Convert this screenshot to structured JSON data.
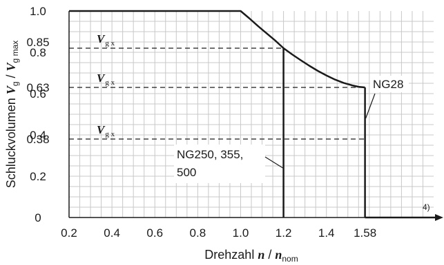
{
  "chart_data": {
    "type": "line",
    "xlabel": {
      "text": "Drehzahl ",
      "var": "n",
      "sep": " / ",
      "var2": "n",
      "sub": "nom"
    },
    "ylabel": {
      "text": "Schluckvolumen ",
      "var": "V",
      "sub": "g",
      "sep": " / ",
      "var2": "V",
      "sub2": "g max"
    },
    "xlim": [
      0.2,
      1.9
    ],
    "ylim": [
      0,
      1.0
    ],
    "x_ticks": [
      {
        "value": 0.2,
        "label": "0.2"
      },
      {
        "value": 0.4,
        "label": "0.4"
      },
      {
        "value": 0.6,
        "label": "0.6"
      },
      {
        "value": 0.8,
        "label": "0.8"
      },
      {
        "value": 1.0,
        "label": "1.0"
      },
      {
        "value": 1.2,
        "label": "1.2"
      },
      {
        "value": 1.4,
        "label": "1.4"
      },
      {
        "value": 1.58,
        "label": "1.58"
      }
    ],
    "y_ticks": [
      {
        "value": 0,
        "label": "0"
      },
      {
        "value": 0.2,
        "label": "0.2"
      },
      {
        "value": 0.38,
        "label": "0.38"
      },
      {
        "value": 0.4,
        "label": "0.4"
      },
      {
        "value": 0.6,
        "label": "0.6"
      },
      {
        "value": 0.63,
        "label": "0.63"
      },
      {
        "value": 0.8,
        "label": "0.8"
      },
      {
        "value": 0.85,
        "label": "0.85"
      },
      {
        "value": 1.0,
        "label": "1.0"
      }
    ],
    "grid": true,
    "envelope": [
      [
        0.2,
        1.0
      ],
      [
        1.0,
        1.0
      ],
      [
        1.04,
        0.965
      ],
      [
        1.08,
        0.928
      ],
      [
        1.12,
        0.893
      ],
      [
        1.16,
        0.858
      ],
      [
        1.2,
        0.82
      ],
      [
        1.24,
        0.79
      ],
      [
        1.28,
        0.762
      ],
      [
        1.32,
        0.735
      ],
      [
        1.36,
        0.71
      ],
      [
        1.4,
        0.688
      ],
      [
        1.44,
        0.668
      ],
      [
        1.48,
        0.652
      ],
      [
        1.52,
        0.64
      ],
      [
        1.55,
        0.633
      ],
      [
        1.58,
        0.63
      ]
    ],
    "series": [
      {
        "name": "NG250, 355, 500",
        "cutoff_x": 1.2,
        "vgx": 0.82
      },
      {
        "name": "NG28",
        "cutoff_x": 1.58,
        "vgx": 0.63
      }
    ],
    "vgx_lines": [
      {
        "y": 0.82,
        "x_end": 1.2,
        "label": "V",
        "sub": "g x"
      },
      {
        "y": 0.63,
        "x_end": 1.58,
        "label": "V",
        "sub": "g x"
      },
      {
        "y": 0.38,
        "x_end": 1.58,
        "label": "V",
        "sub": "g x"
      }
    ],
    "footnote": "4)"
  }
}
